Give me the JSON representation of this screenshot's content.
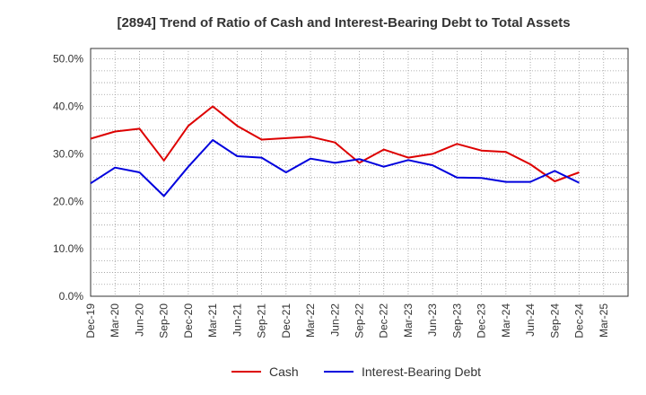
{
  "chart_data": {
    "type": "line",
    "title": "[2894]  Trend of Ratio of Cash and Interest-Bearing Debt to Total Assets",
    "xlabel": "",
    "ylabel": "",
    "x_ticks": [
      "Dec-19",
      "Mar-20",
      "Jun-20",
      "Sep-20",
      "Dec-20",
      "Mar-21",
      "Jun-21",
      "Sep-21",
      "Dec-21",
      "Mar-22",
      "Jun-22",
      "Sep-22",
      "Dec-22",
      "Mar-23",
      "Jun-23",
      "Sep-23",
      "Dec-23",
      "Mar-24",
      "Jun-24",
      "Sep-24",
      "Dec-24",
      "Mar-25"
    ],
    "y_ticks": [
      "0.0%",
      "10.0%",
      "20.0%",
      "30.0%",
      "40.0%",
      "50.0%"
    ],
    "ylim": [
      0,
      50
    ],
    "grid": true,
    "legend_position": "bottom",
    "x": [
      "Dec-19",
      "Mar-20",
      "Jun-20",
      "Sep-20",
      "Dec-20",
      "Mar-21",
      "Jun-21",
      "Sep-21",
      "Dec-21",
      "Mar-22",
      "Jun-22",
      "Sep-22",
      "Dec-22",
      "Mar-23",
      "Jun-23",
      "Sep-23",
      "Dec-23",
      "Mar-24",
      "Jun-24",
      "Sep-24",
      "Dec-24"
    ],
    "series": [
      {
        "name": "Cash",
        "color": "#dd0000",
        "values": [
          33.2,
          34.7,
          35.3,
          28.6,
          35.9,
          40.0,
          35.9,
          33.0,
          33.3,
          33.6,
          32.4,
          28.1,
          30.9,
          29.2,
          30.0,
          32.1,
          30.7,
          30.4,
          27.8,
          24.2,
          26.1
        ]
      },
      {
        "name": "Interest-Bearing Debt",
        "color": "#0000dd",
        "values": [
          23.8,
          27.1,
          26.1,
          21.1,
          27.3,
          32.9,
          29.5,
          29.2,
          26.1,
          29.0,
          28.1,
          28.9,
          27.3,
          28.7,
          27.6,
          25.0,
          24.9,
          24.1,
          24.1,
          26.4,
          23.9
        ]
      }
    ]
  }
}
